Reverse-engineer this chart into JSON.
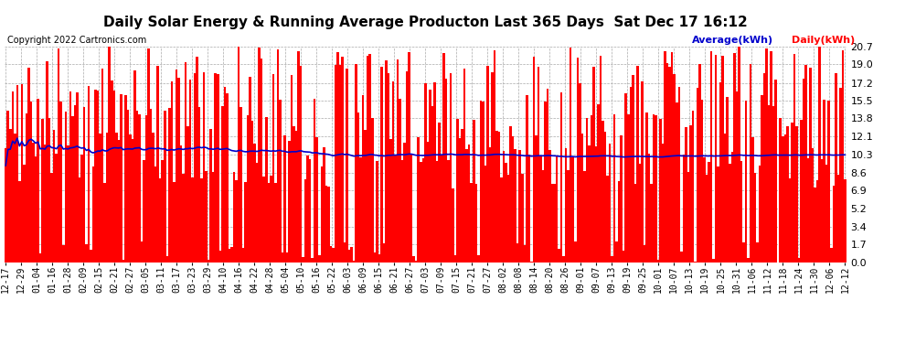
{
  "title": "Daily Solar Energy & Running Average Producton Last 365 Days  Sat Dec 17 16:12",
  "copyright": "Copyright 2022 Cartronics.com",
  "legend_avg": "Average(kWh)",
  "legend_daily": "Daily(kWh)",
  "yticks": [
    0.0,
    1.7,
    3.4,
    5.2,
    6.9,
    8.6,
    10.3,
    12.1,
    13.8,
    15.5,
    17.2,
    19.0,
    20.7
  ],
  "ymax": 20.7,
  "ymin": 0.0,
  "bar_color": "#ff0000",
  "line_color": "#0000cc",
  "avg_color": "#0000cc",
  "daily_color": "#ff0000",
  "bg_color": "#ffffff",
  "grid_color": "#aaaaaa",
  "title_fontsize": 11,
  "axis_fontsize": 7,
  "copyright_fontsize": 7,
  "xtick_labels": [
    "12-17",
    "12-29",
    "01-04",
    "01-16",
    "01-28",
    "02-09",
    "02-15",
    "02-21",
    "02-27",
    "03-05",
    "03-11",
    "03-17",
    "03-23",
    "03-29",
    "04-10",
    "04-16",
    "04-22",
    "04-28",
    "05-04",
    "05-10",
    "05-16",
    "05-22",
    "06-03",
    "06-09",
    "06-15",
    "06-21",
    "06-27",
    "07-03",
    "07-09",
    "07-15",
    "07-21",
    "07-27",
    "08-02",
    "08-08",
    "08-14",
    "08-20",
    "08-26",
    "09-01",
    "09-07",
    "09-13",
    "09-19",
    "09-25",
    "10-01",
    "10-07",
    "10-13",
    "10-19",
    "10-25",
    "10-31",
    "11-06",
    "11-12",
    "11-18",
    "11-24",
    "11-30",
    "12-06",
    "12-12"
  ]
}
